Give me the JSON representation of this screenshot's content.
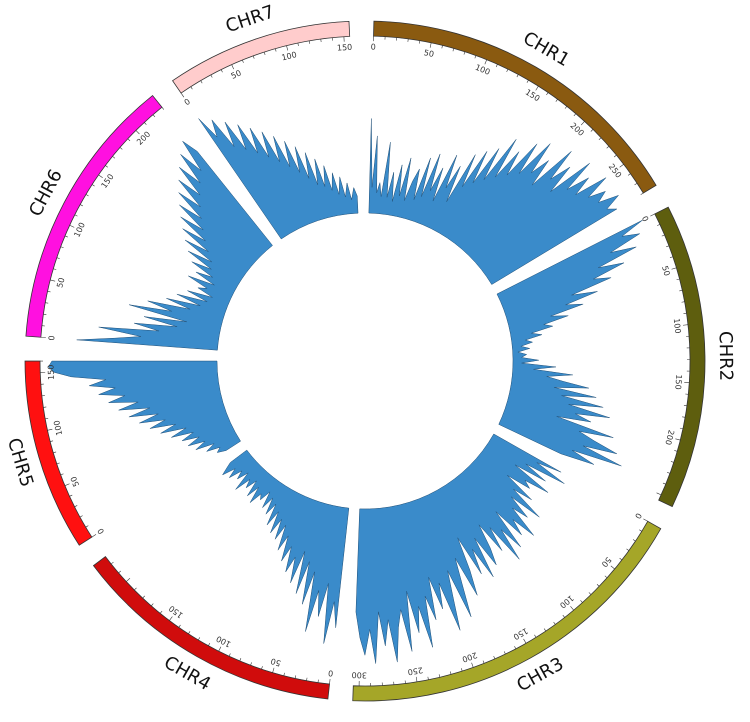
{
  "chart_data": {
    "type": "area",
    "title": "",
    "layout": "circular",
    "grid": false,
    "legend": "none",
    "ideogram_outline_color": "#333333",
    "track": {
      "name": "",
      "fill": "#3a8bca",
      "stroke": "#1f4f77",
      "ymin": 0,
      "ymax": 1
    },
    "chromosomes": [
      {
        "name": "CHR1",
        "length": 280,
        "color": "#8a5a10",
        "ticks": [
          0,
          50,
          100,
          150,
          200,
          250
        ]
      },
      {
        "name": "CHR2",
        "length": 255,
        "color": "#5e5e0e",
        "ticks": [
          0,
          50,
          100,
          150,
          200
        ]
      },
      {
        "name": "CHR3",
        "length": 305,
        "color": "#a5a628",
        "ticks": [
          0,
          50,
          100,
          150,
          200,
          250,
          300
        ]
      },
      {
        "name": "CHR4",
        "length": 228,
        "color": "#d00c0c",
        "ticks": [
          0,
          50,
          100,
          150
        ]
      },
      {
        "name": "CHR5",
        "length": 160,
        "color": "#ff1010",
        "ticks": [
          0,
          50,
          100,
          150
        ]
      },
      {
        "name": "CHR6",
        "length": 230,
        "color": "#ff10e0",
        "ticks": [
          0,
          50,
          100,
          150,
          200
        ]
      },
      {
        "name": "CHR7",
        "length": 155,
        "color": "#ffcccc",
        "ticks": [
          0,
          50,
          100,
          150
        ]
      }
    ],
    "track_values": {
      "CHR1": [
        [
          0,
          0.55
        ],
        [
          4,
          0.15
        ],
        [
          8,
          0.45
        ],
        [
          12,
          0.12
        ],
        [
          16,
          0.18
        ],
        [
          20,
          0.1
        ],
        [
          25,
          0.42
        ],
        [
          30,
          0.1
        ],
        [
          35,
          0.25
        ],
        [
          40,
          0.08
        ],
        [
          45,
          0.3
        ],
        [
          50,
          0.12
        ],
        [
          55,
          0.35
        ],
        [
          60,
          0.1
        ],
        [
          65,
          0.22
        ],
        [
          70,
          0.3
        ],
        [
          75,
          0.12
        ],
        [
          80,
          0.38
        ],
        [
          85,
          0.15
        ],
        [
          90,
          0.42
        ],
        [
          95,
          0.2
        ],
        [
          100,
          0.35
        ],
        [
          105,
          0.15
        ],
        [
          110,
          0.45
        ],
        [
          115,
          0.25
        ],
        [
          120,
          0.4
        ],
        [
          125,
          0.18
        ],
        [
          130,
          0.5
        ],
        [
          135,
          0.3
        ],
        [
          140,
          0.55
        ],
        [
          145,
          0.35
        ],
        [
          150,
          0.6
        ],
        [
          155,
          0.4
        ],
        [
          160,
          0.7
        ],
        [
          165,
          0.45
        ],
        [
          170,
          0.65
        ],
        [
          175,
          0.5
        ],
        [
          180,
          0.75
        ],
        [
          185,
          0.55
        ],
        [
          190,
          0.8
        ],
        [
          195,
          0.6
        ],
        [
          200,
          0.72
        ],
        [
          205,
          0.55
        ],
        [
          210,
          0.85
        ],
        [
          215,
          0.65
        ],
        [
          220,
          0.78
        ],
        [
          225,
          0.6
        ],
        [
          230,
          0.88
        ],
        [
          235,
          0.68
        ],
        [
          240,
          0.82
        ],
        [
          245,
          0.7
        ],
        [
          250,
          0.9
        ],
        [
          255,
          0.75
        ],
        [
          260,
          0.85
        ],
        [
          265,
          0.78
        ],
        [
          270,
          0.9
        ],
        [
          275,
          0.8
        ],
        [
          280,
          0.85
        ]
      ],
      "CHR2": [
        [
          0,
          0.95
        ],
        [
          5,
          0.8
        ],
        [
          10,
          0.9
        ],
        [
          15,
          0.7
        ],
        [
          20,
          0.85
        ],
        [
          25,
          0.6
        ],
        [
          30,
          0.75
        ],
        [
          35,
          0.55
        ],
        [
          40,
          0.65
        ],
        [
          45,
          0.4
        ],
        [
          50,
          0.55
        ],
        [
          55,
          0.35
        ],
        [
          60,
          0.45
        ],
        [
          65,
          0.25
        ],
        [
          70,
          0.35
        ],
        [
          75,
          0.2
        ],
        [
          80,
          0.25
        ],
        [
          85,
          0.12
        ],
        [
          90,
          0.18
        ],
        [
          95,
          0.08
        ],
        [
          100,
          0.12
        ],
        [
          105,
          0.05
        ],
        [
          110,
          0.1
        ],
        [
          115,
          0.03
        ],
        [
          120,
          0.08
        ],
        [
          125,
          0.05
        ],
        [
          130,
          0.15
        ],
        [
          135,
          0.05
        ],
        [
          140,
          0.25
        ],
        [
          145,
          0.12
        ],
        [
          150,
          0.35
        ],
        [
          155,
          0.2
        ],
        [
          160,
          0.3
        ],
        [
          165,
          0.45
        ],
        [
          170,
          0.25
        ],
        [
          175,
          0.5
        ],
        [
          180,
          0.3
        ],
        [
          185,
          0.55
        ],
        [
          190,
          0.35
        ],
        [
          195,
          0.6
        ],
        [
          200,
          0.4
        ],
        [
          205,
          0.5
        ],
        [
          210,
          0.3
        ],
        [
          215,
          0.65
        ],
        [
          220,
          0.45
        ],
        [
          225,
          0.55
        ],
        [
          230,
          0.7
        ],
        [
          235,
          0.5
        ],
        [
          240,
          0.75
        ],
        [
          245,
          0.45
        ],
        [
          250,
          0.6
        ],
        [
          255,
          0.4
        ]
      ],
      "CHR3": [
        [
          0,
          0.45
        ],
        [
          5,
          0.3
        ],
        [
          10,
          0.5
        ],
        [
          15,
          0.25
        ],
        [
          20,
          0.4
        ],
        [
          25,
          0.2
        ],
        [
          30,
          0.45
        ],
        [
          35,
          0.3
        ],
        [
          40,
          0.35
        ],
        [
          45,
          0.2
        ],
        [
          50,
          0.4
        ],
        [
          55,
          0.28
        ],
        [
          60,
          0.5
        ],
        [
          65,
          0.3
        ],
        [
          70,
          0.45
        ],
        [
          75,
          0.35
        ],
        [
          80,
          0.55
        ],
        [
          85,
          0.4
        ],
        [
          90,
          0.5
        ],
        [
          95,
          0.3
        ],
        [
          100,
          0.55
        ],
        [
          105,
          0.4
        ],
        [
          110,
          0.6
        ],
        [
          115,
          0.35
        ],
        [
          120,
          0.5
        ],
        [
          125,
          0.3
        ],
        [
          130,
          0.45
        ],
        [
          135,
          0.55
        ],
        [
          140,
          0.35
        ],
        [
          145,
          0.6
        ],
        [
          150,
          0.4
        ],
        [
          155,
          0.55
        ],
        [
          160,
          0.3
        ],
        [
          165,
          0.5
        ],
        [
          170,
          0.65
        ],
        [
          175,
          0.4
        ],
        [
          180,
          0.55
        ],
        [
          185,
          0.75
        ],
        [
          190,
          0.45
        ],
        [
          195,
          0.6
        ],
        [
          200,
          0.8
        ],
        [
          205,
          0.5
        ],
        [
          210,
          0.65
        ],
        [
          215,
          0.45
        ],
        [
          220,
          0.7
        ],
        [
          225,
          0.55
        ],
        [
          230,
          0.85
        ],
        [
          235,
          0.6
        ],
        [
          240,
          0.75
        ],
        [
          245,
          0.5
        ],
        [
          250,
          0.85
        ],
        [
          255,
          0.6
        ],
        [
          260,
          0.7
        ],
        [
          265,
          0.9
        ],
        [
          270,
          0.65
        ],
        [
          275,
          0.8
        ],
        [
          280,
          0.6
        ],
        [
          285,
          0.9
        ],
        [
          290,
          0.7
        ],
        [
          295,
          0.85
        ],
        [
          300,
          0.75
        ],
        [
          305,
          0.6
        ]
      ],
      "CHR4": [
        [
          0,
          0.7
        ],
        [
          5,
          0.55
        ],
        [
          10,
          0.8
        ],
        [
          15,
          0.45
        ],
        [
          20,
          0.65
        ],
        [
          25,
          0.5
        ],
        [
          30,
          0.75
        ],
        [
          35,
          0.4
        ],
        [
          40,
          0.6
        ],
        [
          45,
          0.35
        ],
        [
          50,
          0.55
        ],
        [
          55,
          0.3
        ],
        [
          60,
          0.5
        ],
        [
          65,
          0.35
        ],
        [
          70,
          0.45
        ],
        [
          75,
          0.3
        ],
        [
          80,
          0.4
        ],
        [
          85,
          0.25
        ],
        [
          90,
          0.35
        ],
        [
          95,
          0.2
        ],
        [
          100,
          0.3
        ],
        [
          105,
          0.18
        ],
        [
          110,
          0.28
        ],
        [
          115,
          0.15
        ],
        [
          120,
          0.25
        ],
        [
          125,
          0.12
        ],
        [
          130,
          0.2
        ],
        [
          135,
          0.1
        ],
        [
          140,
          0.18
        ],
        [
          145,
          0.08
        ],
        [
          150,
          0.15
        ],
        [
          155,
          0.12
        ],
        [
          160,
          0.2
        ],
        [
          165,
          0.1
        ],
        [
          170,
          0.18
        ],
        [
          175,
          0.08
        ],
        [
          180,
          0.15
        ],
        [
          185,
          0.1
        ],
        [
          190,
          0.2
        ],
        [
          195,
          0.08
        ],
        [
          200,
          0.15
        ],
        [
          205,
          0.1
        ],
        [
          210,
          0.18
        ],
        [
          215,
          0.12
        ],
        [
          220,
          0.2
        ],
        [
          225,
          0.15
        ],
        [
          228,
          0.12
        ]
      ],
      "CHR5": [
        [
          0,
          0.1
        ],
        [
          5,
          0.15
        ],
        [
          10,
          0.12
        ],
        [
          15,
          0.2
        ],
        [
          20,
          0.14
        ],
        [
          25,
          0.25
        ],
        [
          30,
          0.18
        ],
        [
          35,
          0.28
        ],
        [
          40,
          0.2
        ],
        [
          45,
          0.3
        ],
        [
          50,
          0.22
        ],
        [
          55,
          0.35
        ],
        [
          60,
          0.25
        ],
        [
          65,
          0.4
        ],
        [
          70,
          0.3
        ],
        [
          75,
          0.45
        ],
        [
          80,
          0.35
        ],
        [
          85,
          0.5
        ],
        [
          90,
          0.38
        ],
        [
          95,
          0.55
        ],
        [
          100,
          0.42
        ],
        [
          105,
          0.6
        ],
        [
          110,
          0.48
        ],
        [
          115,
          0.65
        ],
        [
          120,
          0.55
        ],
        [
          125,
          0.7
        ],
        [
          130,
          0.6
        ],
        [
          135,
          0.75
        ],
        [
          140,
          0.65
        ],
        [
          145,
          0.85
        ],
        [
          150,
          0.95
        ],
        [
          155,
          0.98
        ],
        [
          160,
          0.96
        ]
      ],
      "CHR6": [
        [
          0,
          0.82
        ],
        [
          5,
          0.6
        ],
        [
          10,
          0.45
        ],
        [
          15,
          0.7
        ],
        [
          20,
          0.35
        ],
        [
          25,
          0.5
        ],
        [
          30,
          0.25
        ],
        [
          35,
          0.45
        ],
        [
          40,
          0.2
        ],
        [
          45,
          0.55
        ],
        [
          50,
          0.3
        ],
        [
          55,
          0.45
        ],
        [
          60,
          0.2
        ],
        [
          65,
          0.35
        ],
        [
          70,
          0.15
        ],
        [
          75,
          0.3
        ],
        [
          80,
          0.12
        ],
        [
          85,
          0.25
        ],
        [
          90,
          0.1
        ],
        [
          95,
          0.2
        ],
        [
          100,
          0.15
        ],
        [
          105,
          0.28
        ],
        [
          110,
          0.12
        ],
        [
          115,
          0.25
        ],
        [
          120,
          0.15
        ],
        [
          125,
          0.3
        ],
        [
          130,
          0.18
        ],
        [
          135,
          0.35
        ],
        [
          140,
          0.2
        ],
        [
          145,
          0.4
        ],
        [
          150,
          0.25
        ],
        [
          155,
          0.45
        ],
        [
          160,
          0.3
        ],
        [
          165,
          0.5
        ],
        [
          170,
          0.35
        ],
        [
          175,
          0.55
        ],
        [
          180,
          0.4
        ],
        [
          185,
          0.6
        ],
        [
          190,
          0.45
        ],
        [
          195,
          0.65
        ],
        [
          200,
          0.5
        ],
        [
          205,
          0.7
        ],
        [
          210,
          0.55
        ],
        [
          215,
          0.75
        ],
        [
          220,
          0.6
        ],
        [
          225,
          0.8
        ],
        [
          230,
          0.7
        ]
      ],
      "CHR7": [
        [
          0,
          0.85
        ],
        [
          5,
          0.7
        ],
        [
          10,
          0.8
        ],
        [
          15,
          0.6
        ],
        [
          20,
          0.75
        ],
        [
          25,
          0.55
        ],
        [
          30,
          0.7
        ],
        [
          35,
          0.5
        ],
        [
          40,
          0.65
        ],
        [
          45,
          0.45
        ],
        [
          50,
          0.6
        ],
        [
          55,
          0.4
        ],
        [
          60,
          0.55
        ],
        [
          65,
          0.35
        ],
        [
          70,
          0.5
        ],
        [
          75,
          0.3
        ],
        [
          80,
          0.45
        ],
        [
          85,
          0.25
        ],
        [
          90,
          0.4
        ],
        [
          95,
          0.2
        ],
        [
          100,
          0.35
        ],
        [
          105,
          0.18
        ],
        [
          110,
          0.3
        ],
        [
          115,
          0.15
        ],
        [
          120,
          0.25
        ],
        [
          125,
          0.12
        ],
        [
          130,
          0.22
        ],
        [
          135,
          0.1
        ],
        [
          140,
          0.18
        ],
        [
          145,
          0.08
        ],
        [
          150,
          0.15
        ],
        [
          155,
          0.1
        ]
      ]
    }
  }
}
